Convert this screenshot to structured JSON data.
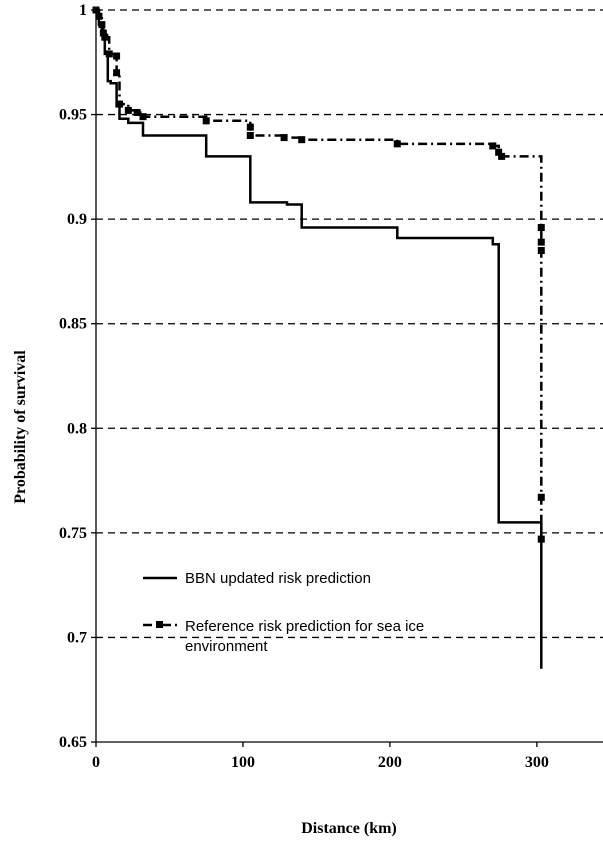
{
  "chart_data": {
    "type": "line",
    "title": "",
    "xlabel": "Distance (km)",
    "ylabel": "Probability of survival",
    "xlim": [
      0,
      345
    ],
    "ylim": [
      0.65,
      1
    ],
    "x_ticks": [
      0,
      100,
      200,
      300
    ],
    "y_ticks": [
      0.65,
      0.7,
      0.75,
      0.8,
      0.85,
      0.9,
      0.95,
      1
    ],
    "y_tick_labels": [
      "0.65",
      "0.7",
      "0.75",
      "0.8",
      "0.85",
      "0.9",
      "0.95",
      "1"
    ],
    "grid": "horizontal dashed",
    "legend_position": "lower-left",
    "series": [
      {
        "name": "BBN updated risk prediction",
        "style": "solid step line",
        "color": "#000000",
        "x": [
          0,
          2,
          2,
          4,
          4,
          6,
          6,
          8,
          8,
          10,
          10,
          14,
          14,
          16,
          16,
          22,
          22,
          32,
          32,
          75,
          75,
          105,
          105,
          130,
          130,
          140,
          140,
          205,
          205,
          270,
          270,
          274,
          274,
          303,
          303
        ],
        "y": [
          1,
          1,
          0.993,
          0.993,
          0.988,
          0.988,
          0.979,
          0.979,
          0.966,
          0.966,
          0.965,
          0.965,
          0.954,
          0.954,
          0.948,
          0.948,
          0.946,
          0.946,
          0.94,
          0.94,
          0.93,
          0.93,
          0.908,
          0.908,
          0.907,
          0.907,
          0.896,
          0.896,
          0.891,
          0.891,
          0.888,
          0.888,
          0.755,
          0.755,
          0.685
        ]
      },
      {
        "name": "Reference risk prediction for sea ice environment",
        "style": "dash-dot with square markers",
        "color": "#000000",
        "x": [
          0,
          2,
          2,
          4,
          4,
          5,
          5,
          6,
          6,
          9,
          9,
          14,
          14,
          16,
          16,
          22,
          22,
          28,
          28,
          32,
          32,
          75,
          75,
          105,
          105,
          128,
          128,
          140,
          140,
          205,
          205,
          270,
          270,
          274,
          274,
          276,
          276,
          303,
          303,
          303,
          303,
          303
        ],
        "y": [
          1,
          1,
          0.997,
          0.997,
          0.993,
          0.993,
          0.989,
          0.989,
          0.987,
          0.987,
          0.979,
          0.979,
          0.97,
          0.97,
          0.955,
          0.955,
          0.952,
          0.952,
          0.951,
          0.951,
          0.949,
          0.949,
          0.947,
          0.947,
          0.94,
          0.94,
          0.939,
          0.939,
          0.938,
          0.938,
          0.936,
          0.936,
          0.935,
          0.935,
          0.932,
          0.932,
          0.93,
          0.93,
          0.896,
          0.889,
          0.767,
          0.747
        ],
        "markers": [
          [
            0,
            1
          ],
          [
            2,
            0.997
          ],
          [
            4,
            0.993
          ],
          [
            5,
            0.989
          ],
          [
            6,
            0.987
          ],
          [
            9,
            0.979
          ],
          [
            14,
            0.97
          ],
          [
            14,
            0.978
          ],
          [
            16,
            0.955
          ],
          [
            22,
            0.952
          ],
          [
            28,
            0.951
          ],
          [
            32,
            0.949
          ],
          [
            75,
            0.947
          ],
          [
            105,
            0.944
          ],
          [
            105,
            0.94
          ],
          [
            128,
            0.939
          ],
          [
            140,
            0.938
          ],
          [
            205,
            0.936
          ],
          [
            270,
            0.935
          ],
          [
            274,
            0.932
          ],
          [
            276,
            0.93
          ],
          [
            303,
            0.896
          ],
          [
            303,
            0.889
          ],
          [
            303,
            0.885
          ],
          [
            303,
            0.767
          ],
          [
            303,
            0.747
          ]
        ]
      }
    ]
  }
}
